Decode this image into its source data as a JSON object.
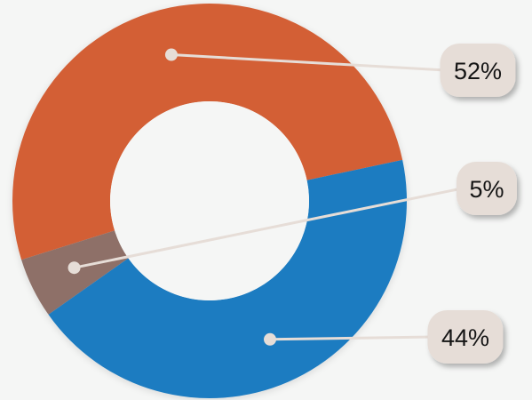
{
  "chart_data": {
    "type": "pie",
    "variant": "donut",
    "title": "",
    "legend": "none",
    "series": [
      {
        "label": "52%",
        "value": 52,
        "color": "#d35f35"
      },
      {
        "label": "5%",
        "value": 5,
        "color": "#8e6f67"
      },
      {
        "label": "44%",
        "value": 44,
        "color": "#1f7bc1"
      }
    ],
    "label_style": {
      "background": "#e6ddd7",
      "text_color": "#151515",
      "leader_color": "#e6ddd7"
    }
  }
}
